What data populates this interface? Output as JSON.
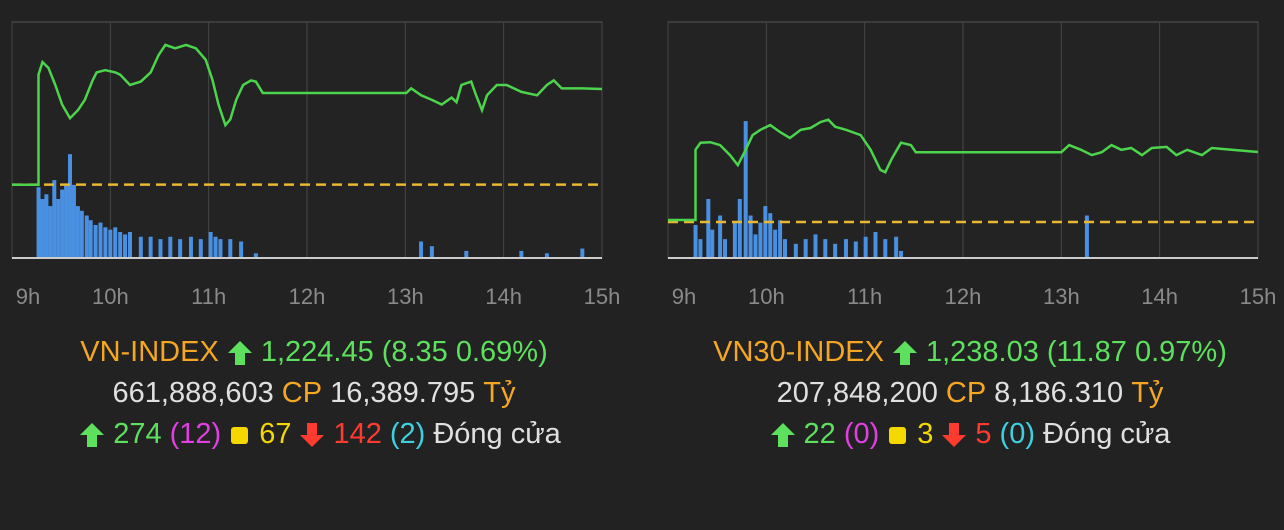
{
  "chart_data": [
    {
      "type": "line",
      "name": "VN-INDEX",
      "value": "1,224.45",
      "change": "(8.35 0.69%)",
      "volume_shares": "661,888,603",
      "shares_unit": "CP",
      "value_traded": "16,389.795",
      "value_unit": "Tỷ",
      "advances": "274",
      "ceiling": "(12)",
      "unchanged": "67",
      "declines": "142",
      "floor": "(2)",
      "status": "Đóng cửa",
      "xlim": [
        9,
        15
      ],
      "xticks": [
        {
          "value": 9,
          "label": "9h"
        },
        {
          "value": 10,
          "label": "10h"
        },
        {
          "value": 11,
          "label": "11h"
        },
        {
          "value": 12,
          "label": "12h"
        },
        {
          "value": 13,
          "label": "13h"
        },
        {
          "value": 14,
          "label": "14h"
        },
        {
          "value": 15,
          "label": "15h"
        }
      ],
      "ylim": [
        1209.7,
        1230.3
      ],
      "reference": 1216.1,
      "reference_color": "#e8b830",
      "line": {
        "color": "#4cd44c",
        "x": [
          9,
          9.27,
          9.27,
          9.31,
          9.37,
          9.44,
          9.51,
          9.59,
          9.67,
          9.74,
          9.82,
          9.86,
          9.95,
          10.05,
          10.1,
          10.2,
          10.31,
          10.41,
          10.49,
          10.56,
          10.66,
          10.77,
          10.87,
          10.97,
          11.04,
          11.1,
          11.17,
          11.22,
          11.28,
          11.35,
          11.43,
          11.48,
          11.55,
          13.01,
          13.06,
          13.16,
          13.27,
          13.37,
          13.47,
          13.52,
          13.57,
          13.67,
          13.72,
          13.78,
          13.83,
          13.93,
          14.03,
          14.18,
          14.34,
          14.44,
          14.51,
          14.59,
          14.8,
          15
        ],
        "values": [
          1216.1,
          1216.1,
          1225.7,
          1226.8,
          1226.3,
          1224.8,
          1223.1,
          1221.9,
          1222.6,
          1223.5,
          1225.2,
          1225.9,
          1226.1,
          1225.9,
          1225.7,
          1224.8,
          1225.1,
          1225.9,
          1227.4,
          1228.3,
          1228.0,
          1228.3,
          1228.0,
          1227.0,
          1225.2,
          1223.1,
          1221.3,
          1221.8,
          1223.5,
          1224.8,
          1225.2,
          1225.1,
          1224.1,
          1224.1,
          1224.5,
          1223.9,
          1223.5,
          1223.1,
          1223.7,
          1223.3,
          1224.8,
          1225.1,
          1223.9,
          1222.6,
          1223.9,
          1224.8,
          1224.8,
          1224.2,
          1223.9,
          1224.8,
          1225.2,
          1224.5,
          1224.5,
          1224.45
        ]
      },
      "y2lim": [
        0,
        100
      ],
      "volume": {
        "color": "#4a90e2",
        "axis": "y2",
        "x": [
          9.27,
          9.31,
          9.35,
          9.39,
          9.43,
          9.47,
          9.51,
          9.55,
          9.59,
          9.63,
          9.67,
          9.71,
          9.76,
          9.8,
          9.85,
          9.9,
          9.95,
          10,
          10.05,
          10.1,
          10.15,
          10.2,
          10.31,
          10.41,
          10.51,
          10.61,
          10.71,
          10.82,
          10.92,
          11.02,
          11.07,
          11.12,
          11.22,
          11.33,
          11.48,
          13.16,
          13.27,
          13.62,
          14.18,
          14.44,
          14.8
        ],
        "values": [
          30,
          25,
          27,
          22,
          33,
          25,
          29,
          31,
          44,
          31,
          22,
          20,
          18,
          16,
          14,
          15,
          13,
          12,
          13,
          11,
          10,
          11,
          9,
          9,
          8,
          9,
          8,
          9,
          8,
          11,
          9,
          8,
          8,
          7,
          2,
          7,
          5,
          3,
          3,
          2,
          4
        ]
      }
    },
    {
      "type": "line",
      "name": "VN30-INDEX",
      "value": "1,238.03",
      "change": "(11.87 0.97%)",
      "volume_shares": "207,848,200",
      "shares_unit": "CP",
      "value_traded": "8,186.310",
      "value_unit": "Tỷ",
      "advances": "22",
      "ceiling": "(0)",
      "unchanged": "3",
      "declines": "5",
      "floor": "(0)",
      "status": "Đóng cửa",
      "xlim": [
        9,
        15
      ],
      "xticks": [
        {
          "value": 9,
          "label": "9h"
        },
        {
          "value": 10,
          "label": "10h"
        },
        {
          "value": 11,
          "label": "11h"
        },
        {
          "value": 12,
          "label": "12h"
        },
        {
          "value": 13,
          "label": "13h"
        },
        {
          "value": 14,
          "label": "14h"
        },
        {
          "value": 15,
          "label": "15h"
        }
      ],
      "ylim": [
        1220.05,
        1260.08
      ],
      "reference": 1226.16,
      "reference_color": "#e8b830",
      "line": {
        "color": "#4cd44c",
        "x": [
          9,
          9.28,
          9.28,
          9.33,
          9.43,
          9.53,
          9.63,
          9.71,
          9.79,
          9.86,
          9.94,
          10.04,
          10.14,
          10.24,
          10.35,
          10.45,
          10.55,
          10.63,
          10.7,
          10.81,
          10.96,
          11.06,
          11.16,
          11.21,
          11.27,
          11.37,
          11.47,
          11.52,
          13,
          13.08,
          13.2,
          13.31,
          13.41,
          13.51,
          13.61,
          13.71,
          13.82,
          13.92,
          14.07,
          14.17,
          14.28,
          14.43,
          14.53,
          14.73,
          15
        ],
        "values": [
          1226.5,
          1226.5,
          1238.4,
          1239.6,
          1239.7,
          1239.2,
          1237.5,
          1235.8,
          1238.4,
          1240.9,
          1241.8,
          1242.6,
          1241.4,
          1240.4,
          1241.8,
          1242.1,
          1243.1,
          1243.5,
          1242.3,
          1241.8,
          1240.9,
          1238.4,
          1235.0,
          1234.6,
          1236.7,
          1239.6,
          1239.2,
          1238.0,
          1238.0,
          1239.2,
          1238.4,
          1237.5,
          1238.0,
          1239.2,
          1238.4,
          1238.7,
          1237.5,
          1238.7,
          1238.9,
          1237.5,
          1238.4,
          1237.5,
          1238.7,
          1238.4,
          1238.03
        ]
      },
      "y2lim": [
        0,
        100
      ],
      "volume": {
        "color": "#4a90e2",
        "axis": "y2",
        "x": [
          9.28,
          9.33,
          9.41,
          9.45,
          9.53,
          9.58,
          9.68,
          9.73,
          9.79,
          9.84,
          9.89,
          9.94,
          9.99,
          10.04,
          10.09,
          10.14,
          10.19,
          10.3,
          10.4,
          10.5,
          10.6,
          10.7,
          10.81,
          10.91,
          11.01,
          11.11,
          11.21,
          11.32,
          11.37,
          13.26
        ],
        "values": [
          14,
          8,
          25,
          12,
          18,
          8,
          15,
          25,
          58,
          18,
          10,
          15,
          22,
          19,
          12,
          16,
          8,
          6,
          8,
          10,
          8,
          6,
          8,
          7,
          9,
          11,
          8,
          9,
          3,
          18
        ]
      }
    }
  ]
}
